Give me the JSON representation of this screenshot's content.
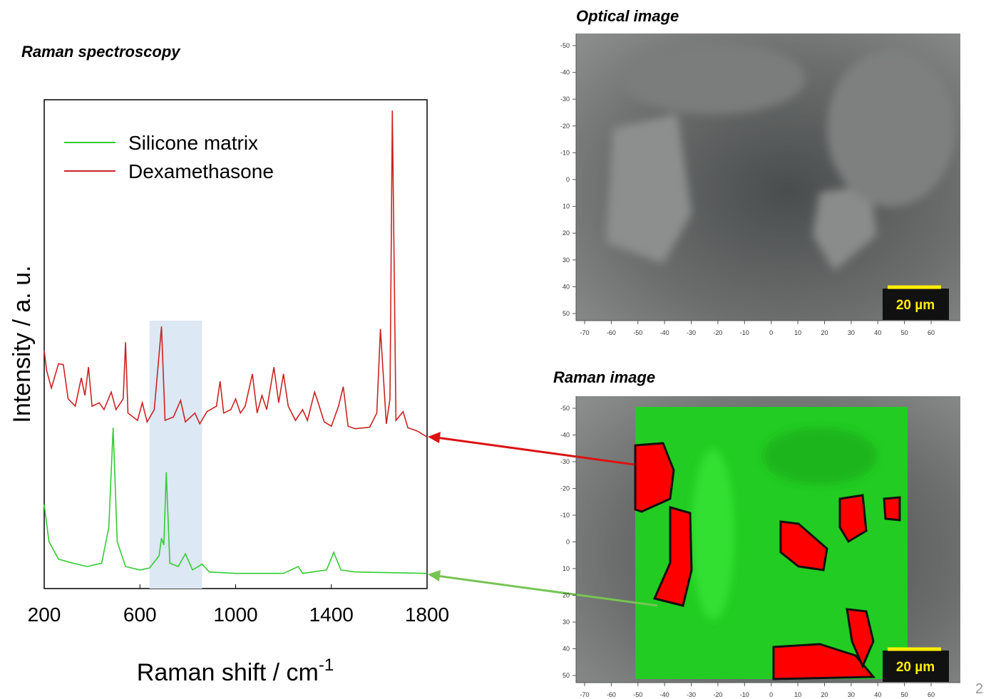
{
  "chart_data": {
    "type": "line",
    "title": "Raman spectroscopy",
    "xlabel": "Raman shift / cm",
    "xlabel_sup": "-1",
    "ylabel": "Intensity / a. u.",
    "xlim": [
      200,
      1800
    ],
    "xticks": [
      200,
      600,
      1000,
      1400,
      1800
    ],
    "ylim": [
      0,
      100
    ],
    "legend": "upper left",
    "highlight_x": [
      640,
      860
    ],
    "highlight_color": "#dce8f4",
    "series": [
      {
        "name": "Silicone matrix",
        "color": "#33cc33",
        "x": [
          200,
          220,
          260,
          320,
          380,
          440,
          470,
          488,
          505,
          540,
          600,
          640,
          680,
          690,
          700,
          710,
          725,
          760,
          790,
          820,
          860,
          890,
          1000,
          1200,
          1262,
          1280,
          1380,
          1410,
          1440,
          1500,
          1800
        ],
        "values": [
          17.2,
          9.6,
          6,
          5.2,
          4.5,
          5.2,
          12.5,
          32.9,
          9.6,
          4.5,
          3.8,
          4.2,
          6.7,
          10.3,
          8.9,
          23.8,
          5.2,
          4.5,
          7.1,
          3.8,
          5,
          3.4,
          3.1,
          3.1,
          4.5,
          3.1,
          3.8,
          7.4,
          3.8,
          3.4,
          3.1
        ]
      },
      {
        "name": "Dexamethasone",
        "color": "#cc2222",
        "x": [
          200,
          210,
          230,
          260,
          280,
          300,
          330,
          355,
          370,
          385,
          400,
          430,
          450,
          480,
          500,
          530,
          540,
          550,
          590,
          610,
          630,
          660,
          690,
          705,
          740,
          770,
          790,
          830,
          850,
          880,
          920,
          935,
          950,
          980,
          1000,
          1020,
          1040,
          1070,
          1090,
          1110,
          1130,
          1160,
          1180,
          1200,
          1220,
          1250,
          1280,
          1300,
          1330,
          1345,
          1370,
          1400,
          1430,
          1450,
          1470,
          1500,
          1560,
          1590,
          1605,
          1615,
          1630,
          1645,
          1655,
          1670,
          1700,
          1720,
          1760,
          1800
        ],
        "values": [
          48.7,
          44.6,
          41,
          46,
          45.8,
          38.8,
          37.3,
          43.1,
          39.5,
          45.3,
          37.3,
          38,
          36.6,
          40.2,
          36.6,
          38.8,
          50.4,
          35.9,
          34.4,
          38,
          34.1,
          36.6,
          53.6,
          34.4,
          35.1,
          38.5,
          34.1,
          35.9,
          33.7,
          36.2,
          37.3,
          42.4,
          35.9,
          36.6,
          38.8,
          35.9,
          37.3,
          43.9,
          35.9,
          39.5,
          36.6,
          45.3,
          38,
          43.9,
          37.3,
          34.4,
          36.6,
          34.4,
          40.2,
          38,
          34.1,
          33.2,
          37.3,
          41.3,
          33.2,
          32.7,
          33,
          35.9,
          53.1,
          45.3,
          33.7,
          38.8,
          97.8,
          34.4,
          36.2,
          32.9,
          32.2,
          31
        ]
      }
    ]
  },
  "images": [
    {
      "title": "Optical image",
      "scale_bar": "20 µm",
      "xticks": [
        -70,
        -60,
        -50,
        -40,
        -30,
        -20,
        -10,
        0,
        10,
        20,
        30,
        40,
        50,
        60
      ],
      "yticks": [
        -50,
        -40,
        -30,
        -20,
        -10,
        0,
        10,
        20,
        30,
        40,
        50
      ]
    },
    {
      "title": "Raman image",
      "scale_bar": "20 µm",
      "xticks": [
        -70,
        -60,
        -50,
        -40,
        -30,
        -20,
        -10,
        0,
        10,
        20,
        30,
        40,
        50,
        60
      ],
      "yticks": [
        -50,
        -40,
        -30,
        -20,
        -10,
        0,
        10,
        20,
        30,
        40,
        50
      ]
    }
  ],
  "page_number": "2"
}
